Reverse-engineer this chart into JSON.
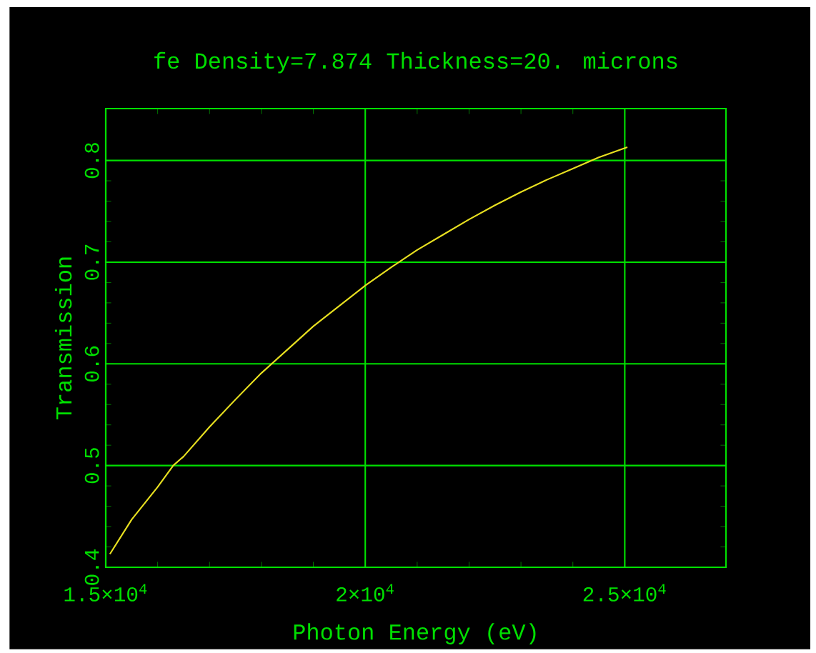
{
  "chart_data": {
    "type": "line",
    "title": "fe Density=7.874 Thickness=20. microns",
    "xlabel": "Photon Energy (eV)",
    "ylabel": "Transmission",
    "x": [
      15080,
      15500,
      16000,
      16300,
      16500,
      17000,
      17500,
      18000,
      18500,
      19000,
      19500,
      20000,
      20500,
      21000,
      21500,
      22000,
      22500,
      23000,
      23500,
      24000,
      24500,
      25050
    ],
    "series": [
      {
        "color": "#e8e020",
        "values": [
          0.413,
          0.447,
          0.479,
          0.5,
          0.509,
          0.538,
          0.565,
          0.591,
          0.614,
          0.637,
          0.657,
          0.677,
          0.695,
          0.712,
          0.727,
          0.742,
          0.756,
          0.769,
          0.781,
          0.792,
          0.803,
          0.813
        ]
      }
    ],
    "xlim": [
      15000,
      26950
    ],
    "ylim": [
      0.4,
      0.851
    ],
    "xticks": [
      {
        "value": 15000,
        "label": "1.5×10$^{4}$"
      },
      {
        "value": 20000,
        "label": "2×10$^{4}$"
      },
      {
        "value": 25000,
        "label": "2.5×10$^{4}$"
      }
    ],
    "yticks": [
      0.4,
      0.5,
      0.6,
      0.7,
      0.8
    ],
    "grid": true,
    "marker": "none",
    "line_style": "solid"
  }
}
